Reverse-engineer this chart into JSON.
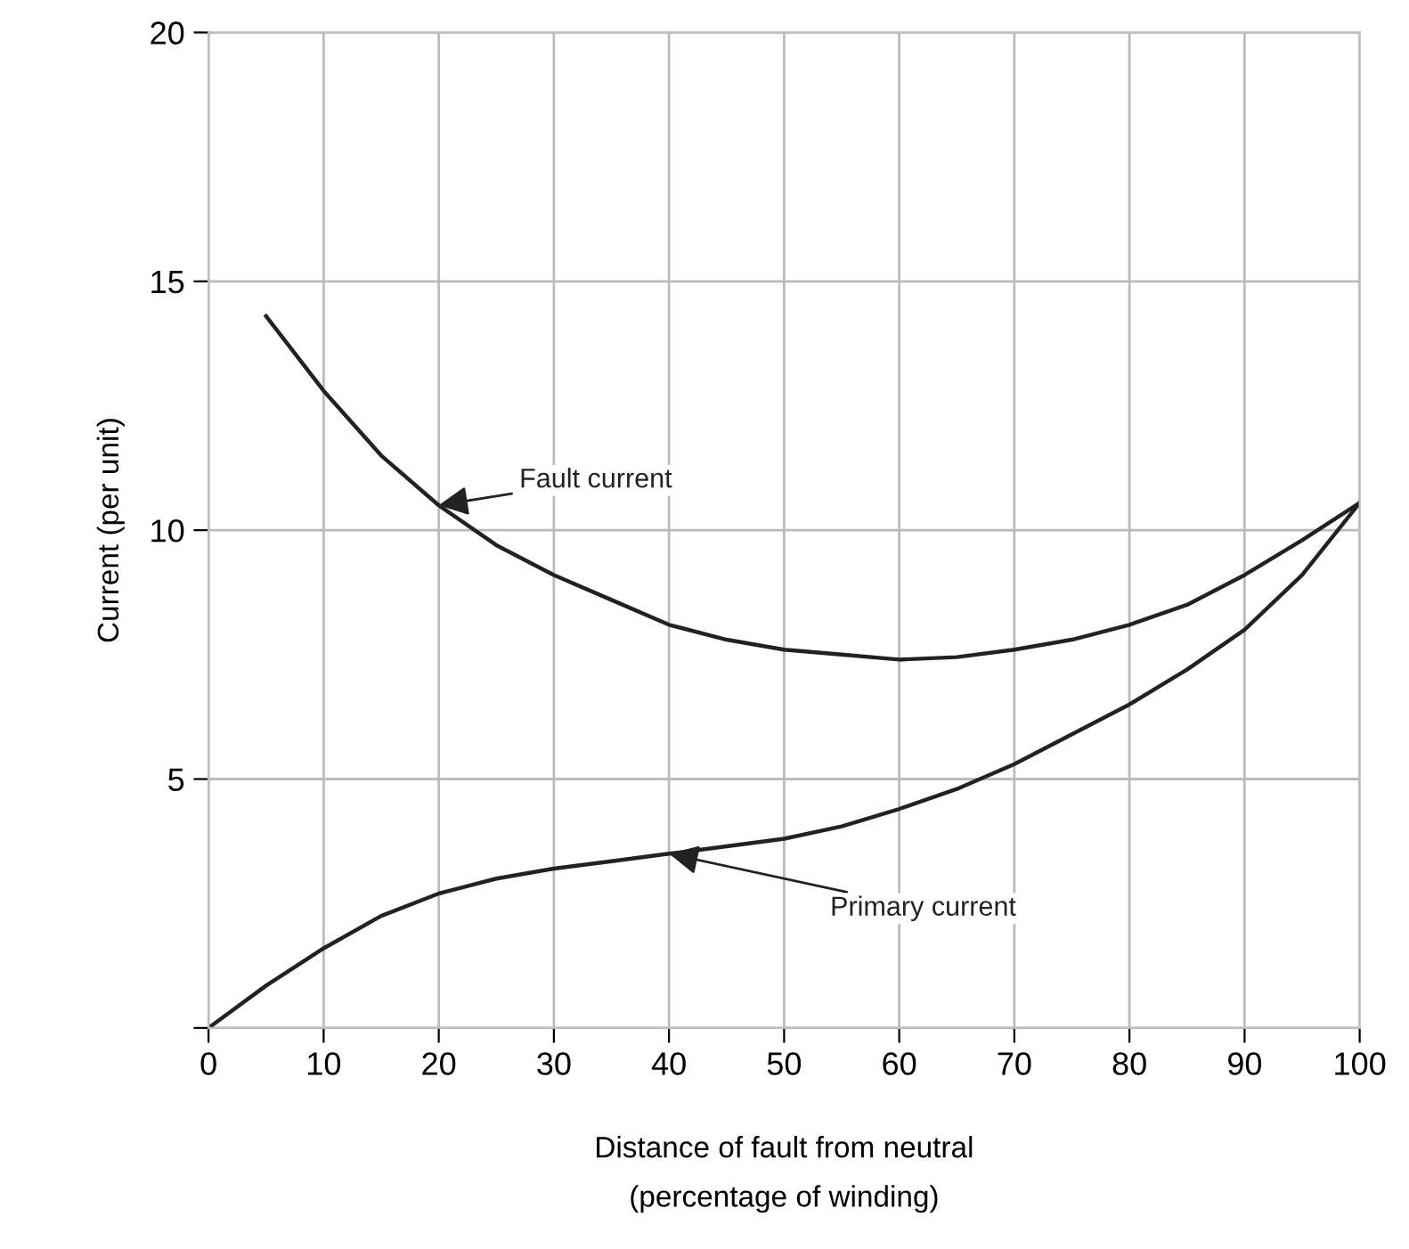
{
  "chart_data": {
    "type": "line",
    "xlabel": "Distance of fault from neutral\n(percentage of winding)",
    "ylabel": "Current (per unit)",
    "series": [
      {
        "name": "Fault current",
        "color": "#222222",
        "x": [
          5,
          10,
          15,
          20,
          25,
          30,
          35,
          40,
          45,
          50,
          55,
          60,
          65,
          70,
          75,
          80,
          85,
          90,
          95,
          100
        ],
        "values": [
          14.3,
          12.8,
          11.5,
          10.5,
          9.7,
          9.1,
          8.6,
          8.1,
          7.8,
          7.6,
          7.5,
          7.4,
          7.45,
          7.6,
          7.8,
          8.1,
          8.5,
          9.1,
          9.8,
          10.55
        ]
      },
      {
        "name": "Primary current",
        "color": "#222222",
        "x": [
          0,
          5,
          10,
          15,
          20,
          25,
          30,
          35,
          40,
          45,
          50,
          55,
          60,
          65,
          70,
          75,
          80,
          85,
          90,
          95,
          100
        ],
        "values": [
          0,
          0.85,
          1.6,
          2.25,
          2.7,
          3.0,
          3.2,
          3.35,
          3.5,
          3.65,
          3.8,
          4.05,
          4.4,
          4.8,
          5.3,
          5.9,
          6.5,
          7.2,
          8.0,
          9.1,
          10.55
        ]
      }
    ],
    "xlim": [
      0,
      100
    ],
    "xticks": [
      0,
      10,
      20,
      30,
      40,
      50,
      60,
      70,
      80,
      90,
      100
    ],
    "ylim": [
      0,
      20
    ],
    "yticks": [
      {
        "value": 0,
        "label": null
      },
      5,
      10,
      15,
      20
    ],
    "grid": true,
    "legend": false,
    "marker": "none",
    "line_style": "solid"
  }
}
